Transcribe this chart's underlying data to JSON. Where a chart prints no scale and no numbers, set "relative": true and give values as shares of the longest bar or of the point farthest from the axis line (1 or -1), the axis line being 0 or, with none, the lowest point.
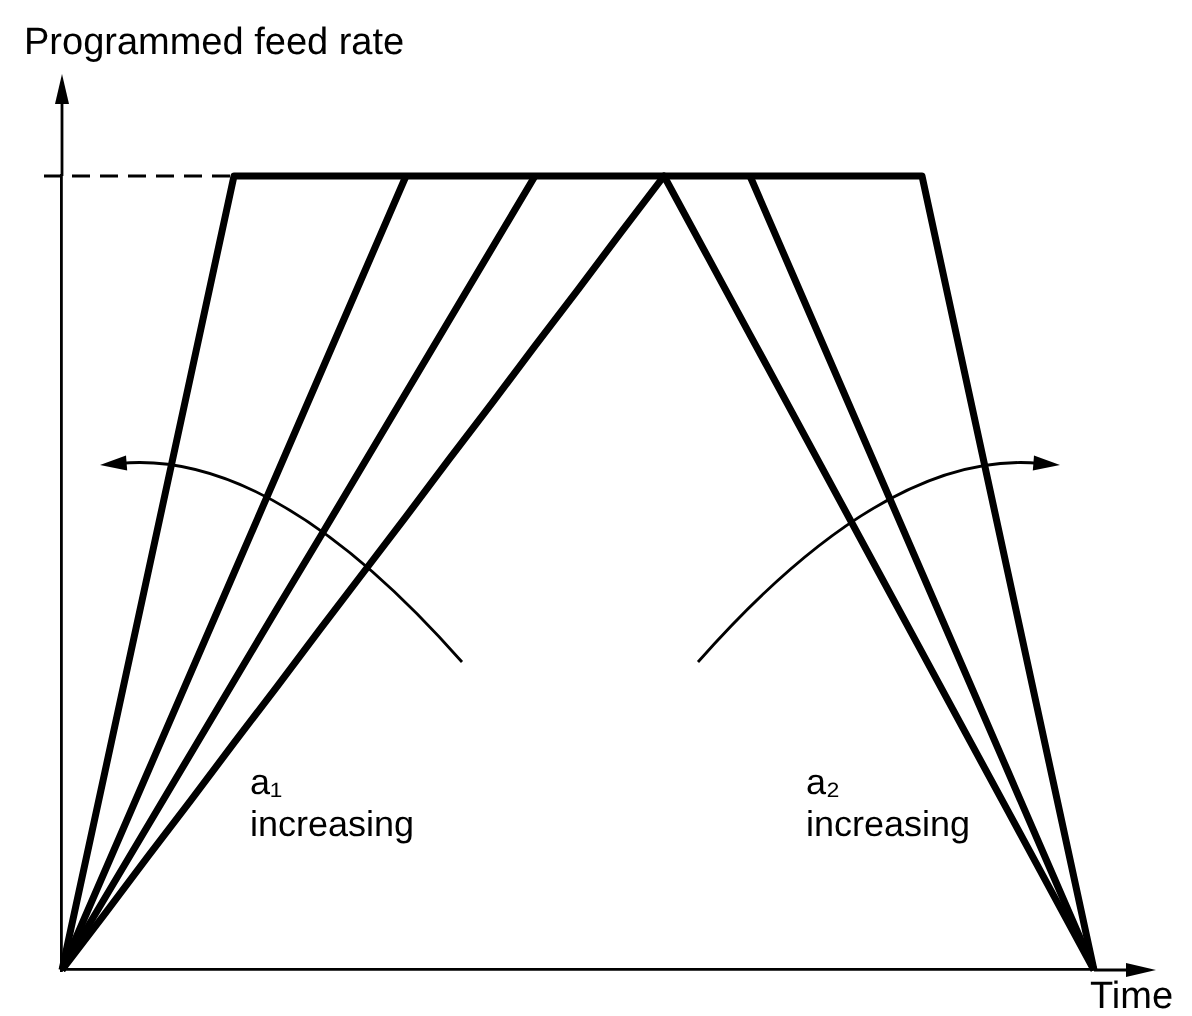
{
  "chart_data": {
    "type": "line",
    "ylabel": "Programmed feed rate",
    "xlabel": "Time",
    "relative": true,
    "marker": "none",
    "categories": [
      null,
      null,
      null,
      null,
      null,
      null,
      null,
      null,
      null,
      null,
      null,
      null,
      null,
      null,
      null,
      null,
      null,
      null,
      null,
      null,
      null,
      null,
      null,
      null,
      null
    ],
    "series": [
      {
        "color": "#000000",
        "values": [
          0,
          0.25,
          0.5,
          0.75,
          1,
          1,
          1,
          1,
          1,
          1,
          1,
          1,
          1,
          1,
          1,
          1,
          1,
          1,
          1,
          1,
          1,
          0.75,
          0.5,
          0.25,
          0
        ]
      },
      {
        "color": "#000000",
        "values": [
          0,
          0.071,
          0.143,
          0.214,
          0.286,
          0.357,
          0.429,
          0.5,
          0.571,
          0.643,
          0.714,
          0.786,
          0.857,
          0.929,
          1,
          0.9,
          0.8,
          0.7,
          0.6,
          0.5,
          0.4,
          0.3,
          0.2,
          0.1,
          0
        ]
      },
      {
        "color": "#000000",
        "values": [
          0,
          0.125,
          0.25,
          0.375,
          0.5,
          0.625,
          0.75,
          0.875,
          1,
          null,
          null,
          null,
          null,
          null,
          null,
          null,
          null,
          null,
          null,
          null,
          null,
          null,
          null,
          null,
          null
        ]
      },
      {
        "color": "#000000",
        "values": [
          0,
          0.091,
          0.182,
          0.273,
          0.364,
          0.455,
          0.545,
          0.636,
          0.727,
          0.818,
          0.909,
          1,
          null,
          null,
          null,
          null,
          null,
          null,
          null,
          null,
          null,
          null,
          null,
          null,
          null
        ]
      },
      {
        "color": "#000000",
        "values": [
          null,
          null,
          null,
          null,
          null,
          null,
          null,
          null,
          null,
          null,
          null,
          null,
          null,
          null,
          null,
          null,
          1,
          0.875,
          0.75,
          0.625,
          0.5,
          0.375,
          0.25,
          0.125,
          0
        ]
      }
    ],
    "ref_lines": [
      {
        "axis": "y",
        "value": 1,
        "line_style": "dashed",
        "color": "#000000"
      }
    ],
    "annotations": [
      "a₁ increasing",
      "a₂ increasing"
    ]
  }
}
